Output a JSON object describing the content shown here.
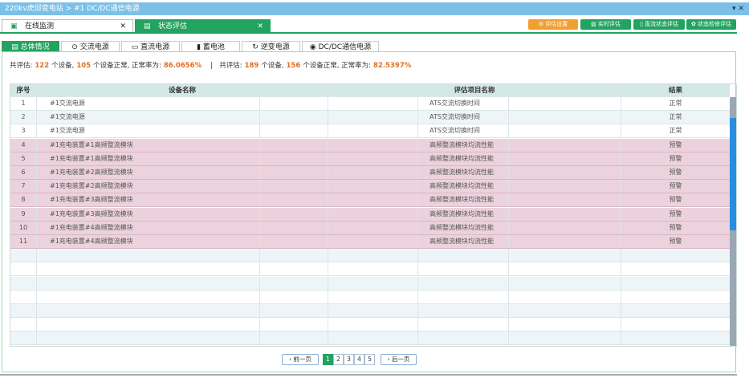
{
  "breadcrumb": "220kv虎邱变电站 > #1 DC/DC通信电源",
  "window_controls": {
    "menu": "▾",
    "close": "✕"
  },
  "top_tabs": [
    {
      "label": "在线监测",
      "icon": "monitor-icon",
      "close": "✕"
    },
    {
      "label": "状态评估",
      "icon": "assess-icon",
      "close": "✕",
      "active": true
    }
  ],
  "toolbar": [
    {
      "label": "评估设置",
      "icon": "gear-icon",
      "color": "#f0a030"
    },
    {
      "label": "实时评估",
      "icon": "chart-icon"
    },
    {
      "label": "直流状态评估",
      "icon": "doc-icon"
    },
    {
      "label": "状态检修评估",
      "icon": "tools-icon"
    }
  ],
  "sub_tabs": [
    {
      "label": "总体情况",
      "icon": "list-icon",
      "active": true
    },
    {
      "label": "交流电源",
      "icon": "ac-icon"
    },
    {
      "label": "直流电源",
      "icon": "dc-icon"
    },
    {
      "label": "蓄电池",
      "icon": "battery-icon"
    },
    {
      "label": "逆变电源",
      "icon": "inverter-icon"
    },
    {
      "label": "DC/DC通信电源",
      "icon": "dcdc-icon"
    }
  ],
  "summary": {
    "p1": "共评估:",
    "total1": "122",
    "p2": "个设备,",
    "normal1": "105",
    "p3": "个设备正常, 正常率为:",
    "rate1": "86.0656%",
    "sep": "|",
    "q1": "共评估:",
    "total2": "189",
    "q2": "个设备,",
    "normal2": "156",
    "q3": "个设备正常, 正常率为:",
    "rate2": "82.5397%"
  },
  "table": {
    "headers": [
      "序号",
      "设备名称",
      "评估项目名称",
      "结果"
    ],
    "rows": [
      [
        "1",
        "#1交流电源",
        "ATS交流切换时间",
        "正常"
      ],
      [
        "2",
        "#1交流电源",
        "ATS交流切换时间",
        "正常"
      ],
      [
        "3",
        "#1交流电源",
        "ATS交流切换时间",
        "正常"
      ],
      [
        "4",
        "#1充电装置#1高频整流模块",
        "高频整流模块均流性能",
        "预警"
      ],
      [
        "5",
        "#1充电装置#1高频整流模块",
        "高频整流模块均流性能",
        "预警"
      ],
      [
        "6",
        "#1充电装置#2高频整流模块",
        "高频整流模块均流性能",
        "预警"
      ],
      [
        "7",
        "#1充电装置#2高频整流模块",
        "高频整流模块均流性能",
        "预警"
      ],
      [
        "8",
        "#1充电装置#3高频整流模块",
        "高频整流模块均流性能",
        "预警"
      ],
      [
        "9",
        "#1充电装置#3高频整流模块",
        "高频整流模块均流性能",
        "预警"
      ],
      [
        "10",
        "#1充电装置#4高频整流模块",
        "高频整流模块均流性能",
        "预警"
      ],
      [
        "11",
        "#1充电装置#4高频整流模块",
        "高频整流模块均流性能",
        "预警"
      ]
    ]
  },
  "pager": {
    "prev": "‹ 前一页",
    "next": "› 后一页",
    "pages": [
      "1",
      "2",
      "3",
      "4",
      "5"
    ],
    "current": "1"
  }
}
